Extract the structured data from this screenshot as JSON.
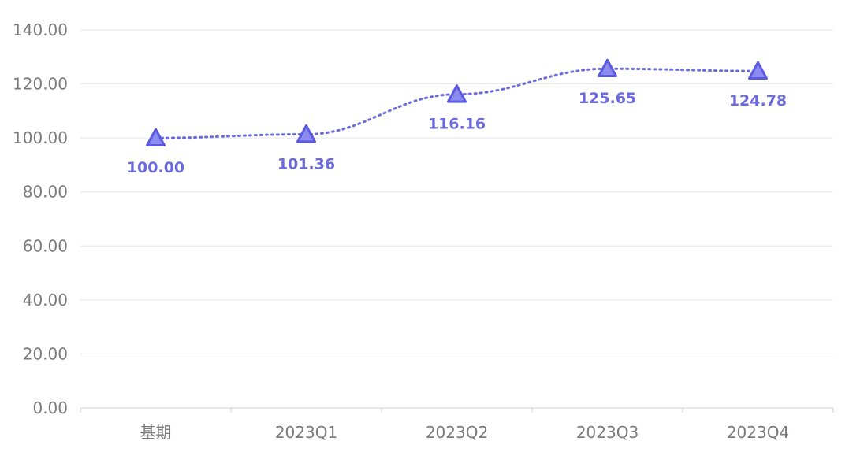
{
  "chart_data": {
    "type": "line",
    "title": "",
    "xlabel": "",
    "ylabel": "",
    "categories": [
      "基期",
      "2023Q1",
      "2023Q2",
      "2023Q3",
      "2023Q4"
    ],
    "series": [
      {
        "values": [
          100.0,
          101.36,
          116.16,
          125.65,
          124.78
        ]
      }
    ],
    "data_labels": [
      "100.00",
      "101.36",
      "116.16",
      "125.65",
      "124.78"
    ],
    "ylim": [
      0,
      140
    ],
    "yticks": [
      0,
      20,
      40,
      60,
      80,
      100,
      120,
      140
    ],
    "ytick_labels": [
      "0.00",
      "20.00",
      "40.00",
      "60.00",
      "80.00",
      "100.00",
      "120.00",
      "140.00"
    ],
    "grid": true,
    "line_style": "dotted",
    "marker": "triangle",
    "colors": {
      "series": "#6b6bdc",
      "grid": "#e6e6e6",
      "axis": "#cfcfcf",
      "text": "#7a7a7a"
    }
  }
}
